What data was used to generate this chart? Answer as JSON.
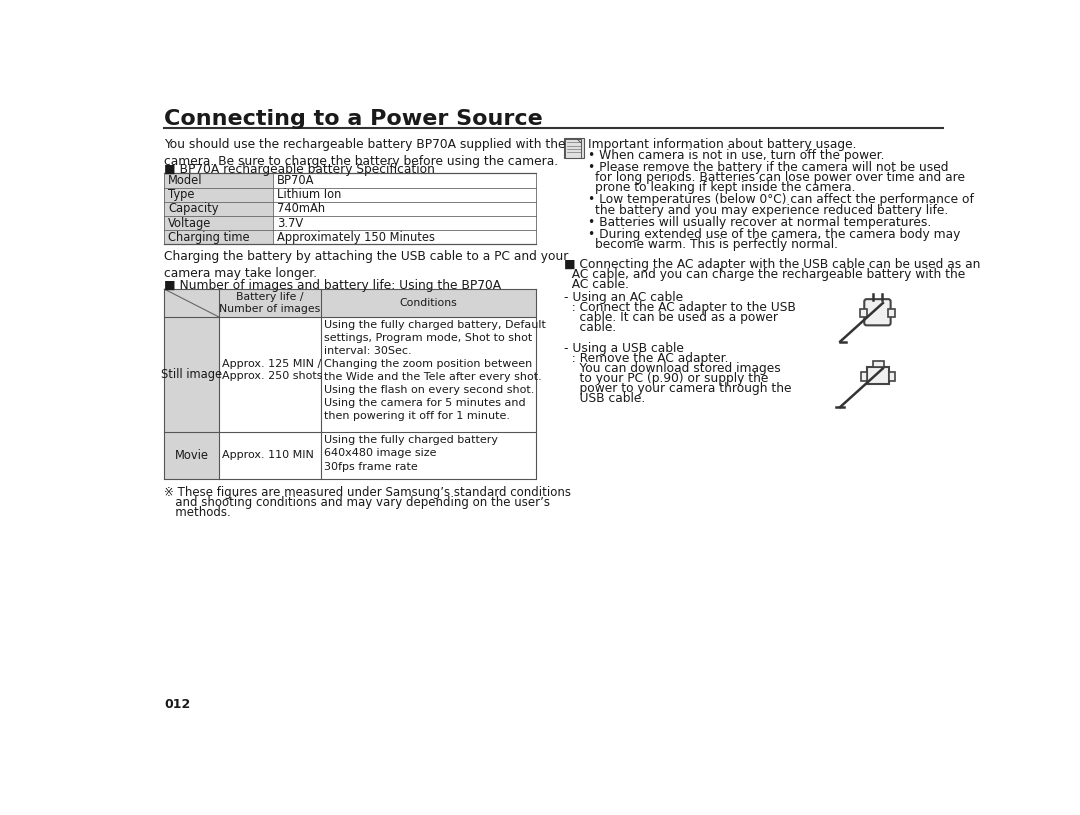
{
  "title": "Connecting to a Power Source",
  "bg_color": "#ffffff",
  "text_color": "#1a1a1a",
  "gray_color": "#d4d4d4",
  "dark_line": "#333333",
  "page_number": "012",
  "intro_text": "You should use the rechargeable battery BP70A supplied with the\ncamera. Be sure to charge the battery before using the camera.",
  "spec_title": "■ BP70A rechargeable battery Specification",
  "spec_rows": [
    [
      "Model",
      "BP70A"
    ],
    [
      "Type",
      "Lithium Ion"
    ],
    [
      "Capacity",
      "740mAh"
    ],
    [
      "Voltage",
      "3.7V"
    ],
    [
      "Charging time",
      "Approximately 150 Minutes"
    ]
  ],
  "charging_note": "Charging the battery by attaching the USB cable to a PC and your\ncamera may take longer.",
  "battery_table_title": "■ Number of images and battery life: Using the BP70A",
  "battery_header_col2": "Battery life /\nNumber of images",
  "battery_header_col3": "Conditions",
  "still_image_label": "Still image",
  "still_image_battery": "Approx. 125 MIN /\nApprox. 250 shots",
  "still_image_cond1": "Using the fully charged battery, Default\nsettings, Program mode, Shot to shot\ninterval: 30Sec.",
  "still_image_cond2": "Changing the zoom position between\nthe Wide and the Tele after every shot.\nUsing the flash on every second shot.\nUsing the camera for 5 minutes and\nthen powering it off for 1 minute.",
  "movie_label": "Movie",
  "movie_battery": "Approx. 110 MIN",
  "movie_conditions": "Using the fully charged battery\n640x480 image size\n30fps frame rate",
  "footnote_line1": "※ These figures are measured under Samsung’s standard conditions",
  "footnote_line2": "   and shooting conditions and may vary depending on the user’s",
  "footnote_line3": "   methods.",
  "right_note_title": "Important information about battery usage.",
  "right_bullet1": "When camera is not in use, turn off the power.",
  "right_bullet2a": "Please remove the battery if the camera will not be used",
  "right_bullet2b": "for long periods. Batteries can lose power over time and are",
  "right_bullet2c": "prone to leaking if kept inside the camera.",
  "right_bullet3a": "Low temperatures (below 0°C) can affect the performance of",
  "right_bullet3b": "the battery and you may experience reduced battery life.",
  "right_bullet4": "Batteries will usually recover at normal temperatures.",
  "right_bullet5a": "During extended use of the camera, the camera body may",
  "right_bullet5b": "become warm. This is perfectly normal.",
  "right_ac_line1": "■ Connecting the AC adapter with the USB cable can be used as an",
  "right_ac_line2": "  AC cable, and you can charge the rechargeable battery with the",
  "right_ac_line3": "  AC cable.",
  "ac_text_line1": "- Using an AC cable",
  "ac_text_line2": "  : Connect the AC adapter to the USB",
  "ac_text_line3": "    cable. It can be used as a power",
  "ac_text_line4": "    cable.",
  "usb_text_line1": "- Using a USB cable",
  "usb_text_line2": "  : Remove the AC adapter.",
  "usb_text_line3": "    You can download stored images",
  "usb_text_line4": "    to your PC (p.90) or supply the",
  "usb_text_line5": "    power to your camera through the",
  "usb_text_line6": "    USB cable."
}
